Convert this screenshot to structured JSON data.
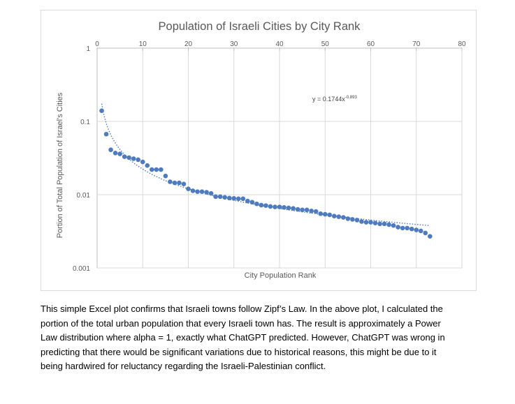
{
  "chart_data": {
    "type": "scatter",
    "title": "Population of Israeli Cities by City Rank",
    "xlabel": "City Population Rank",
    "ylabel": "Portion of Total Population of Israel's Cities",
    "xlim": [
      0,
      80
    ],
    "ylim": [
      0.001,
      1
    ],
    "y_scale": "log",
    "x_ticks": [
      "0",
      "10",
      "20",
      "30",
      "40",
      "50",
      "60",
      "70",
      "80"
    ],
    "y_ticks": [
      "1",
      "0.1",
      "0.01",
      "0.001"
    ],
    "x_axis_position": "top",
    "grid": true,
    "marker_color": "#4e7bbd",
    "trendline": {
      "type": "power",
      "equation_text": "y = 0.1744x",
      "equation_exponent": "-0.893",
      "coefficient": 0.1744,
      "exponent": -0.893,
      "style": "dotted",
      "color": "#4e7bbd"
    },
    "x": [
      1,
      2,
      3,
      4,
      5,
      6,
      7,
      8,
      9,
      10,
      11,
      12,
      13,
      14,
      15,
      16,
      17,
      18,
      19,
      20,
      21,
      22,
      23,
      24,
      25,
      26,
      27,
      28,
      29,
      30,
      31,
      32,
      33,
      34,
      35,
      36,
      37,
      38,
      39,
      40,
      41,
      42,
      43,
      44,
      45,
      46,
      47,
      48,
      49,
      50,
      51,
      52,
      53,
      54,
      55,
      56,
      57,
      58,
      59,
      60,
      61,
      62,
      63,
      64,
      65,
      66,
      67,
      68,
      69,
      70,
      71,
      72,
      73
    ],
    "y": [
      0.14,
      0.067,
      0.041,
      0.037,
      0.036,
      0.033,
      0.032,
      0.031,
      0.03,
      0.028,
      0.025,
      0.022,
      0.022,
      0.022,
      0.018,
      0.015,
      0.0145,
      0.0145,
      0.014,
      0.012,
      0.0113,
      0.011,
      0.011,
      0.0108,
      0.0104,
      0.0094,
      0.0094,
      0.0092,
      0.009,
      0.0089,
      0.0088,
      0.0088,
      0.0082,
      0.0079,
      0.0075,
      0.0072,
      0.0071,
      0.0069,
      0.0068,
      0.0068,
      0.0067,
      0.0066,
      0.0065,
      0.0063,
      0.0062,
      0.0062,
      0.006,
      0.0059,
      0.0055,
      0.0054,
      0.0053,
      0.0051,
      0.005,
      0.0049,
      0.0047,
      0.0046,
      0.0045,
      0.0043,
      0.0042,
      0.0042,
      0.0041,
      0.004,
      0.004,
      0.0039,
      0.0038,
      0.0036,
      0.0035,
      0.0035,
      0.0034,
      0.0033,
      0.0032,
      0.003,
      0.0027
    ]
  },
  "caption": {
    "lines": [
      "This simple Excel plot confirms that Israeli towns follow Zipf’s Law. In the above plot, I calculated the",
      "portion of the total urban population that every Israeli town has. The result is approximately a Power",
      "Law distribution where alpha = 1, exactly what ChatGPT predicted. However, ChatGPT was wrong in",
      "predicting that there would be significant variations due to historical reasons, this might be due to it",
      "being hardwired for reluctancy regarding the Israeli-Palestinian conflict."
    ]
  }
}
